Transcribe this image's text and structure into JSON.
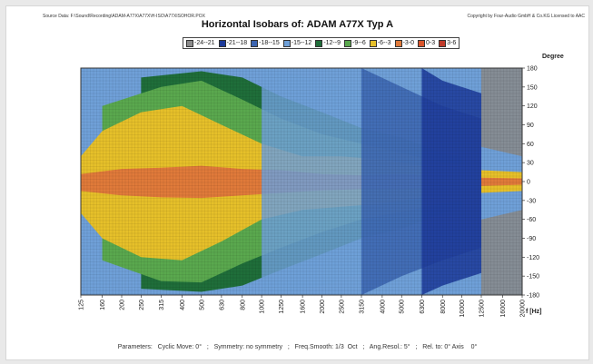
{
  "header": {
    "source": "Source Data:  F:\\Sound\\Recording\\ADAM-A77X\\A77X\\H-ISO\\A77XISOHOR.POX",
    "copyright": "Copyright by Four-Audio GmbH & Co.KG    Licensed to AAC",
    "title": "Horizontal Isobars of:   ADAM  A77X  Typ A"
  },
  "degree_label": "Degree",
  "parameters": "Parameters:   Cyclic Move: 0°   ;   Symmetry: no symmetry   ;   Freq.Smooth: 1/3  Oct   ;   Ang.Resol.: 5°   ;   Rel. to: 0° Axis    0°",
  "chart_data": {
    "type": "heatmap",
    "title": "Horizontal Isobars of:   ADAM  A77X  Typ A",
    "xlabel": "f [Hz]",
    "ylabel": "Degree",
    "x_scale": "log",
    "x_ticks": [
      "125",
      "160",
      "200",
      "250",
      "315",
      "400",
      "500",
      "630",
      "800",
      "1000",
      "1250",
      "1600",
      "2000",
      "2500",
      "3150",
      "4000",
      "5000",
      "6300",
      "8000",
      "10000",
      "12500",
      "16000",
      "20000"
    ],
    "y_ticks": [
      "180",
      "150",
      "120",
      "90",
      "60",
      "30",
      "0",
      "-30",
      "-60",
      "-90",
      "-120",
      "-150",
      "-180"
    ],
    "ylim": [
      -180,
      180
    ],
    "legend_position": "top",
    "grid": true,
    "levels": [
      {
        "label": "-24--21",
        "color": "#8a8a8a"
      },
      {
        "label": "-21--18",
        "color": "#1c3a9a"
      },
      {
        "label": "-18--15",
        "color": "#3b64b0"
      },
      {
        "label": "-15--12",
        "color": "#6fa0d8"
      },
      {
        "label": "-12--9",
        "color": "#1f6e3a"
      },
      {
        "label": "-9--6",
        "color": "#5aa84e"
      },
      {
        "label": "-6--3",
        "color": "#e6c02a"
      },
      {
        "label": "-3-0",
        "color": "#e07a3a"
      },
      {
        "label": "0-3",
        "color": "#d9542a"
      },
      {
        "label": "3-6",
        "color": "#c03a2a"
      }
    ],
    "level_bands": [
      {
        "level": "-3-0",
        "points": [
          [
            125,
            12
          ],
          [
            200,
            20
          ],
          [
            315,
            22
          ],
          [
            500,
            25
          ],
          [
            800,
            20
          ],
          [
            1250,
            18
          ],
          [
            2000,
            12
          ],
          [
            3150,
            10
          ],
          [
            5000,
            12
          ],
          [
            8000,
            9
          ],
          [
            12500,
            6
          ],
          [
            20000,
            5
          ],
          [
            20000,
            -5
          ],
          [
            12500,
            -7
          ],
          [
            8000,
            -9
          ],
          [
            5000,
            -12
          ],
          [
            3150,
            -12
          ],
          [
            2000,
            -14
          ],
          [
            1250,
            -18
          ],
          [
            800,
            -22
          ],
          [
            500,
            -26
          ],
          [
            315,
            -25
          ],
          [
            200,
            -22
          ],
          [
            125,
            -15
          ]
        ]
      },
      {
        "level": "-6--3",
        "points": [
          [
            125,
            40
          ],
          [
            160,
            80
          ],
          [
            250,
            110
          ],
          [
            400,
            120
          ],
          [
            630,
            90
          ],
          [
            1000,
            60
          ],
          [
            1600,
            40
          ],
          [
            2500,
            40
          ],
          [
            4000,
            35
          ],
          [
            6300,
            25
          ],
          [
            12500,
            18
          ],
          [
            20000,
            15
          ],
          [
            20000,
            -15
          ],
          [
            12500,
            -18
          ],
          [
            6300,
            -25
          ],
          [
            4000,
            -35
          ],
          [
            2500,
            -40
          ],
          [
            1600,
            -45
          ],
          [
            1000,
            -60
          ],
          [
            630,
            -95
          ],
          [
            400,
            -125
          ],
          [
            250,
            -120
          ],
          [
            160,
            -90
          ],
          [
            125,
            -50
          ]
        ]
      },
      {
        "level": "-9--6",
        "points": [
          [
            160,
            120
          ],
          [
            315,
            150
          ],
          [
            500,
            160
          ],
          [
            800,
            130
          ],
          [
            1250,
            100
          ],
          [
            2000,
            75
          ],
          [
            3150,
            60
          ],
          [
            5000,
            45
          ],
          [
            8000,
            30
          ],
          [
            12500,
            25
          ],
          [
            12500,
            -28
          ],
          [
            8000,
            -35
          ],
          [
            5000,
            -48
          ],
          [
            3150,
            -60
          ],
          [
            2000,
            -80
          ],
          [
            1250,
            -105
          ],
          [
            800,
            -130
          ],
          [
            500,
            -160
          ],
          [
            315,
            -158
          ],
          [
            160,
            -125
          ]
        ]
      },
      {
        "level": "-12--9",
        "points": [
          [
            250,
            165
          ],
          [
            500,
            175
          ],
          [
            800,
            165
          ],
          [
            1250,
            135
          ],
          [
            2000,
            110
          ],
          [
            3150,
            85
          ],
          [
            5000,
            70
          ],
          [
            8000,
            45
          ],
          [
            10000,
            40
          ],
          [
            10000,
            -42
          ],
          [
            8000,
            -50
          ],
          [
            5000,
            -75
          ],
          [
            3150,
            -90
          ],
          [
            2000,
            -115
          ],
          [
            1250,
            -140
          ],
          [
            800,
            -165
          ],
          [
            500,
            -175
          ],
          [
            250,
            -170
          ]
        ]
      },
      {
        "level": "-15--12",
        "points": [
          [
            1000,
            180
          ],
          [
            2000,
            160
          ],
          [
            3150,
            140
          ],
          [
            5000,
            110
          ],
          [
            8000,
            80
          ],
          [
            12500,
            60
          ],
          [
            12500,
            -65
          ],
          [
            8000,
            -85
          ],
          [
            5000,
            -115
          ],
          [
            3150,
            -145
          ],
          [
            2000,
            -165
          ],
          [
            1000,
            -180
          ]
        ]
      },
      {
        "level": "-18--15",
        "points": [
          [
            3150,
            180
          ],
          [
            5000,
            150
          ],
          [
            8000,
            120
          ],
          [
            12500,
            100
          ],
          [
            12500,
            -105
          ],
          [
            8000,
            -125
          ],
          [
            5000,
            -150
          ],
          [
            3150,
            -180
          ]
        ]
      },
      {
        "level": "-21--18",
        "points": [
          [
            6300,
            180
          ],
          [
            8000,
            160
          ],
          [
            12500,
            140
          ],
          [
            12500,
            -145
          ],
          [
            8000,
            -165
          ],
          [
            6300,
            -180
          ]
        ]
      },
      {
        "level": "-24--21",
        "points": [
          [
            12500,
            180
          ],
          [
            20000,
            180
          ],
          [
            20000,
            40
          ],
          [
            12500,
            55
          ],
          [
            12500,
            -60
          ],
          [
            20000,
            -45
          ],
          [
            20000,
            -180
          ],
          [
            12500,
            -180
          ]
        ]
      }
    ]
  }
}
